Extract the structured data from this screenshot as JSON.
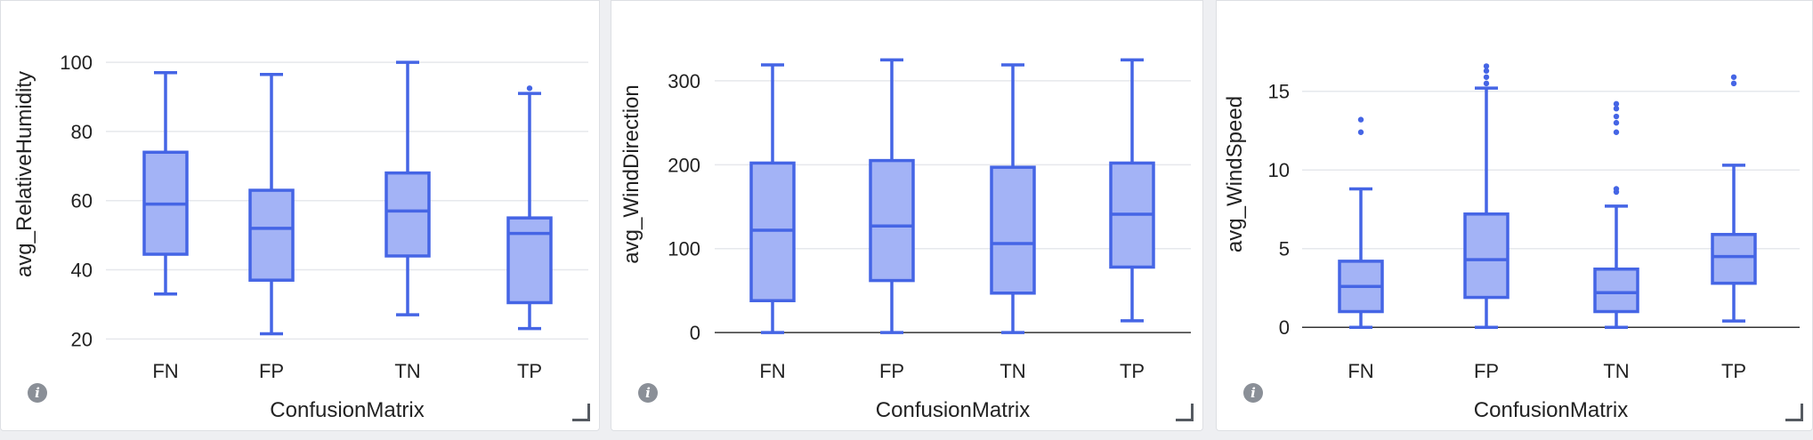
{
  "colors": {
    "box_fill": "#a3b3f6",
    "box_stroke": "#4565e5",
    "grid": "#e6e8ec",
    "axis": "#333333",
    "text": "#222222"
  },
  "icons": {
    "info": "info-icon",
    "resize": "resize-corner-icon"
  },
  "chart_data": [
    {
      "type": "box",
      "xlabel": "ConfusionMatrix",
      "ylabel": "avg_RelativeHumidity",
      "ylim": [
        17,
        108
      ],
      "yticks": [
        20,
        40,
        60,
        80,
        100
      ],
      "grid": true,
      "categories": [
        "FN",
        "FP",
        "TN",
        "TP"
      ],
      "boxes": [
        {
          "min": 33,
          "q1": 44.5,
          "median": 59,
          "q3": 74,
          "max": 97,
          "outliers": []
        },
        {
          "min": 21.5,
          "q1": 37,
          "median": 52,
          "q3": 63,
          "max": 96.5,
          "outliers": []
        },
        {
          "min": 27,
          "q1": 44,
          "median": 57,
          "q3": 68,
          "max": 100,
          "outliers": []
        },
        {
          "min": 23,
          "q1": 30.5,
          "median": 50.5,
          "q3": 55,
          "max": 91,
          "outliers": [
            92.5
          ]
        }
      ]
    },
    {
      "type": "box",
      "xlabel": "ConfusionMatrix",
      "ylabel": "avg_WindDirection",
      "ylim": [
        -20,
        355
      ],
      "yticks": [
        0,
        100,
        200,
        300
      ],
      "grid": true,
      "categories": [
        "FN",
        "FP",
        "TN",
        "TP"
      ],
      "boxes": [
        {
          "min": 0,
          "q1": 38,
          "median": 122,
          "q3": 202,
          "max": 319,
          "outliers": []
        },
        {
          "min": 0,
          "q1": 62,
          "median": 127,
          "q3": 205,
          "max": 325,
          "outliers": []
        },
        {
          "min": 0,
          "q1": 47,
          "median": 106,
          "q3": 197,
          "max": 319,
          "outliers": []
        },
        {
          "min": 14,
          "q1": 78,
          "median": 141,
          "q3": 202,
          "max": 325,
          "outliers": []
        }
      ]
    },
    {
      "type": "box",
      "xlabel": "ConfusionMatrix",
      "ylabel": "avg_WindSpeed",
      "ylim": [
        -1.4,
        18.6
      ],
      "yticks": [
        0,
        5,
        10,
        15
      ],
      "grid": true,
      "categories": [
        "FN",
        "FP",
        "TN",
        "TP"
      ],
      "boxes": [
        {
          "min": 0,
          "q1": 1,
          "median": 2.6,
          "q3": 4.2,
          "max": 8.8,
          "outliers": [
            12.4,
            13.2
          ]
        },
        {
          "min": 0,
          "q1": 1.9,
          "median": 4.3,
          "q3": 7.2,
          "max": 15.2,
          "outliers": [
            15.5,
            15.9,
            16.3,
            16.6
          ]
        },
        {
          "min": 0,
          "q1": 1,
          "median": 2.2,
          "q3": 3.7,
          "max": 7.7,
          "outliers": [
            8.6,
            8.8,
            12.4,
            13,
            13.4,
            13.9,
            14.2
          ]
        },
        {
          "min": 0.4,
          "q1": 2.8,
          "median": 4.5,
          "q3": 5.9,
          "max": 10.3,
          "outliers": [
            15.5,
            15.9
          ]
        }
      ]
    }
  ]
}
